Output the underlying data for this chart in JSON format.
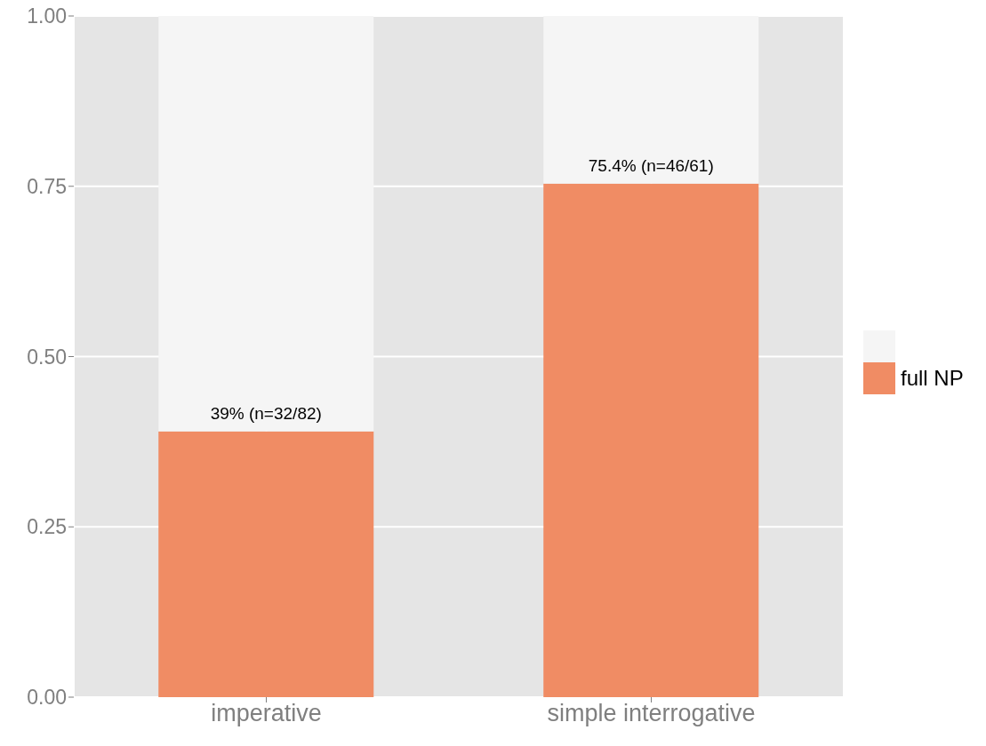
{
  "chart_data": {
    "type": "bar",
    "stacked": true,
    "categories": [
      "imperative",
      "simple interrogative"
    ],
    "series": [
      {
        "name": "full NP",
        "color": "#f08c64",
        "values": [
          0.39,
          0.754
        ],
        "value_labels": [
          "39% (n=32/82)",
          "75.4% (n=46/61)"
        ]
      },
      {
        "color": "#f5f5f5",
        "values": [
          0.61,
          0.246
        ]
      }
    ],
    "ylim": [
      0,
      1
    ],
    "yticks": [
      {
        "value": 0,
        "label": "0.00"
      },
      {
        "value": 0.25,
        "label": "0.25"
      },
      {
        "value": 0.5,
        "label": "0.50"
      },
      {
        "value": 0.75,
        "label": "0.75"
      },
      {
        "value": 1,
        "label": "1.00"
      }
    ],
    "grid": true,
    "legend": "right"
  }
}
